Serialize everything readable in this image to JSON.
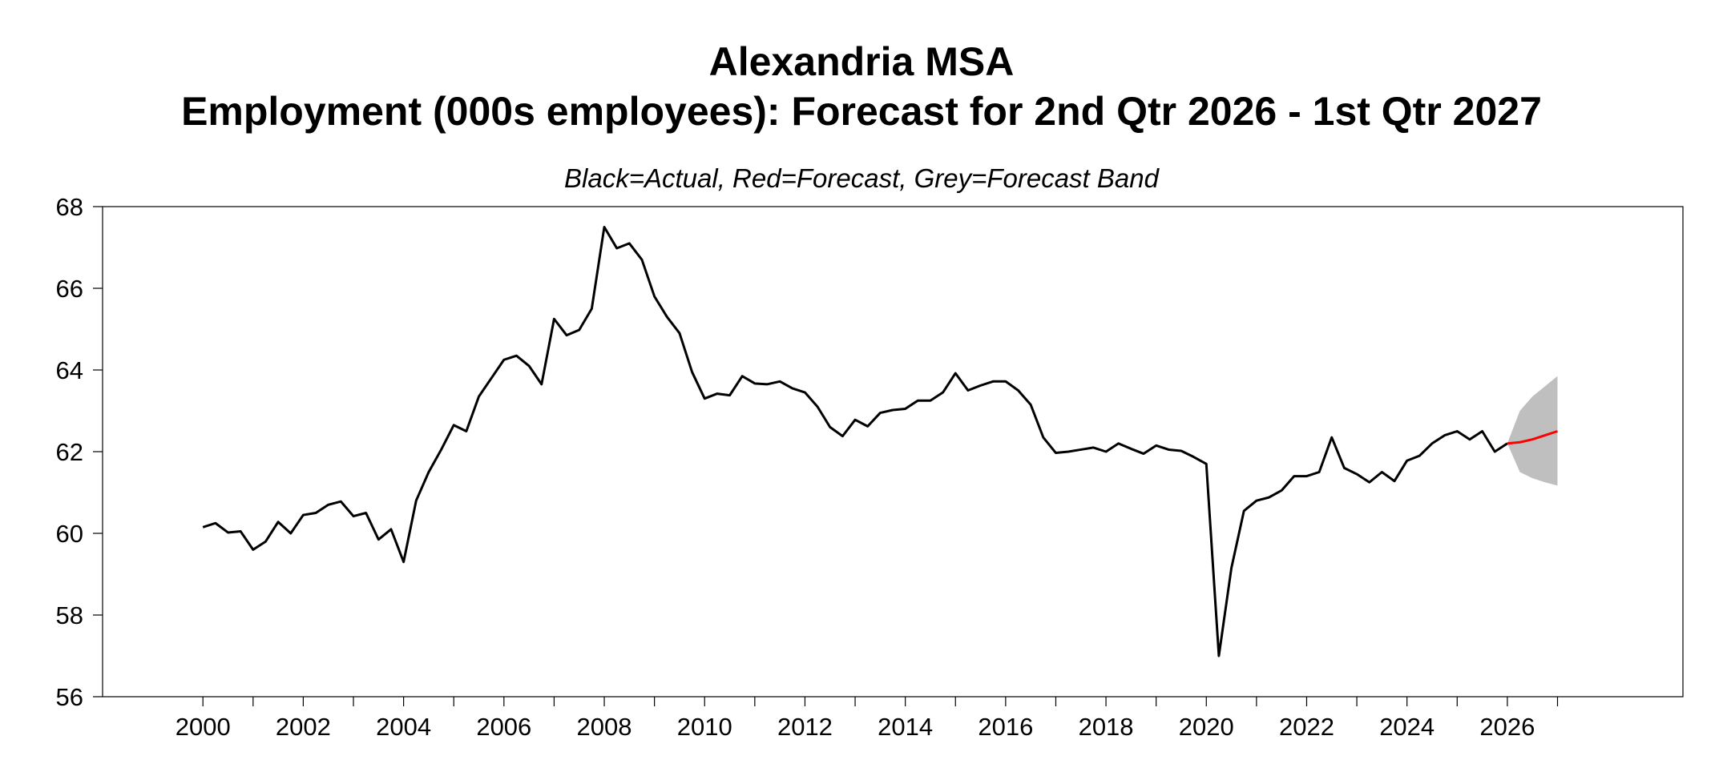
{
  "chart_data": {
    "type": "line",
    "title": "Alexandria MSA",
    "subtitle": "Employment (000s employees): Forecast for 2nd Qtr 2026 - 1st Qtr 2027",
    "note": "Black=Actual, Red=Forecast, Grey=Forecast Band",
    "xlabel": "",
    "ylabel": "",
    "xlim": [
      1998,
      2029.5
    ],
    "ylim": [
      56,
      68
    ],
    "y_ticks": [
      56,
      58,
      60,
      62,
      64,
      66,
      68
    ],
    "x_ticks": [
      2000,
      2002,
      2004,
      2006,
      2008,
      2010,
      2012,
      2014,
      2016,
      2018,
      2020,
      2022,
      2024,
      2026
    ],
    "grid": false,
    "colors": {
      "actual": "#000000",
      "forecast": "#ff0000",
      "band": "#bfbfbf"
    },
    "series": [
      {
        "kind": "actual",
        "x": [
          2000.0,
          2000.25,
          2000.5,
          2000.75,
          2001.0,
          2001.25,
          2001.5,
          2001.75,
          2002.0,
          2002.25,
          2002.5,
          2002.75,
          2003.0,
          2003.25,
          2003.5,
          2003.75,
          2004.0,
          2004.25,
          2004.5,
          2004.75,
          2005.0,
          2005.25,
          2005.5,
          2005.75,
          2006.0,
          2006.25,
          2006.5,
          2006.75,
          2007.0,
          2007.25,
          2007.5,
          2007.75,
          2008.0,
          2008.25,
          2008.5,
          2008.75,
          2009.0,
          2009.25,
          2009.5,
          2009.75,
          2010.0,
          2010.25,
          2010.5,
          2010.75,
          2011.0,
          2011.25,
          2011.5,
          2011.75,
          2012.0,
          2012.25,
          2012.5,
          2012.75,
          2013.0,
          2013.25,
          2013.5,
          2013.75,
          2014.0,
          2014.25,
          2014.5,
          2014.75,
          2015.0,
          2015.25,
          2015.5,
          2015.75,
          2016.0,
          2016.25,
          2016.5,
          2016.75,
          2017.0,
          2017.25,
          2017.5,
          2017.75,
          2018.0,
          2018.25,
          2018.5,
          2018.75,
          2019.0,
          2019.25,
          2019.5,
          2019.75,
          2020.0,
          2020.25,
          2020.5,
          2020.75,
          2021.0,
          2021.25,
          2021.5,
          2021.75,
          2022.0,
          2022.25,
          2022.5,
          2022.75,
          2023.0,
          2023.25,
          2023.5,
          2023.75,
          2024.0,
          2024.25,
          2024.5,
          2024.75,
          2025.0,
          2025.25,
          2025.5,
          2025.75,
          2026.0
        ],
        "y": [
          60.15,
          60.25,
          60.02,
          60.05,
          59.6,
          59.8,
          60.28,
          60.0,
          60.45,
          60.5,
          60.7,
          60.78,
          60.42,
          60.5,
          59.85,
          60.1,
          59.3,
          60.8,
          61.5,
          62.05,
          62.65,
          62.5,
          63.35,
          63.8,
          64.25,
          64.35,
          64.1,
          63.65,
          65.25,
          64.85,
          64.98,
          65.5,
          67.5,
          66.98,
          67.1,
          66.7,
          65.8,
          65.3,
          64.9,
          63.95,
          63.3,
          63.42,
          63.38,
          63.85,
          63.67,
          63.65,
          63.72,
          63.55,
          63.45,
          63.1,
          62.6,
          62.38,
          62.78,
          62.62,
          62.95,
          63.02,
          63.05,
          63.25,
          63.25,
          63.45,
          63.92,
          63.5,
          63.62,
          63.72,
          63.72,
          63.5,
          63.15,
          62.35,
          61.97,
          62.0,
          62.05,
          62.1,
          62.0,
          62.2,
          62.07,
          61.95,
          62.15,
          62.05,
          62.02,
          61.87,
          61.7,
          57.0,
          59.15,
          60.55,
          60.8,
          60.88,
          61.05,
          61.4,
          61.4,
          61.5,
          62.35,
          61.6,
          61.45,
          61.25,
          61.5,
          61.28,
          61.78,
          61.9,
          62.2,
          62.4,
          62.5,
          62.3,
          62.5,
          62.0,
          62.2
        ]
      },
      {
        "kind": "forecast",
        "x": [
          2026.0,
          2026.25,
          2026.5,
          2026.75,
          2027.0
        ],
        "y": [
          62.2,
          62.23,
          62.3,
          62.4,
          62.5
        ]
      }
    ],
    "band": {
      "x": [
        2026.0,
        2026.25,
        2026.5,
        2026.75,
        2027.0
      ],
      "upper": [
        62.2,
        63.0,
        63.35,
        63.6,
        63.85
      ],
      "lower": [
        62.2,
        61.5,
        61.35,
        61.25,
        61.17
      ]
    }
  }
}
